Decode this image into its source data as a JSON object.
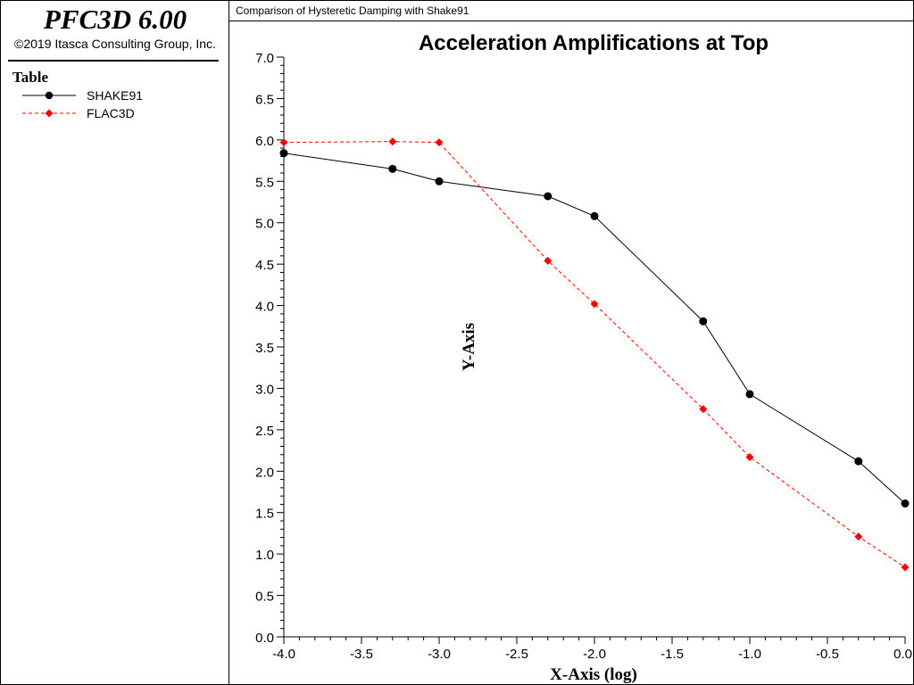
{
  "app": {
    "title": "PFC3D 6.00",
    "copyright": "©2019 Itasca Consulting Group, Inc."
  },
  "legend": {
    "title": "Table",
    "items": [
      {
        "label": "SHAKE91",
        "color": "#000000",
        "line_style": "solid",
        "marker": "circle"
      },
      {
        "label": "FLAC3D",
        "color": "#ff0000",
        "line_style": "dashed",
        "marker": "diamond"
      }
    ]
  },
  "plot_header": "Comparison of Hysteretic Damping with Shake91",
  "chart_data": {
    "type": "line",
    "title": "Acceleration Amplifications at Top",
    "xlabel": "X-Axis (log)",
    "ylabel": "Y-Axis",
    "xlim": [
      -4.0,
      0.0
    ],
    "ylim": [
      0.0,
      7.0
    ],
    "xticks": [
      "-4.0",
      "-3.5",
      "-3.0",
      "-2.5",
      "-2.0",
      "-1.5",
      "-1.0",
      "-0.5",
      "0.0"
    ],
    "yticks": [
      "0.0",
      "0.5",
      "1.0",
      "1.5",
      "2.0",
      "2.5",
      "3.0",
      "3.5",
      "4.0",
      "4.5",
      "5.0",
      "5.5",
      "6.0",
      "6.5",
      "7.0"
    ],
    "grid": false,
    "legend_placement": "left panel",
    "series": [
      {
        "name": "SHAKE91",
        "color": "#000000",
        "line_style": "solid",
        "marker": "circle",
        "x": [
          -4.0,
          -3.3,
          -3.0,
          -2.3,
          -2.0,
          -1.3,
          -1.0,
          -0.3,
          0.0
        ],
        "y": [
          5.84,
          5.65,
          5.5,
          5.32,
          5.08,
          3.81,
          2.93,
          2.12,
          1.61
        ]
      },
      {
        "name": "FLAC3D",
        "color": "#ff0000",
        "line_style": "dashed",
        "marker": "diamond",
        "x": [
          -4.0,
          -3.3,
          -3.0,
          -2.3,
          -2.0,
          -1.3,
          -1.0,
          -0.3,
          0.0
        ],
        "y": [
          5.97,
          5.98,
          5.97,
          4.54,
          4.02,
          2.75,
          2.17,
          1.21,
          0.84
        ]
      }
    ]
  }
}
